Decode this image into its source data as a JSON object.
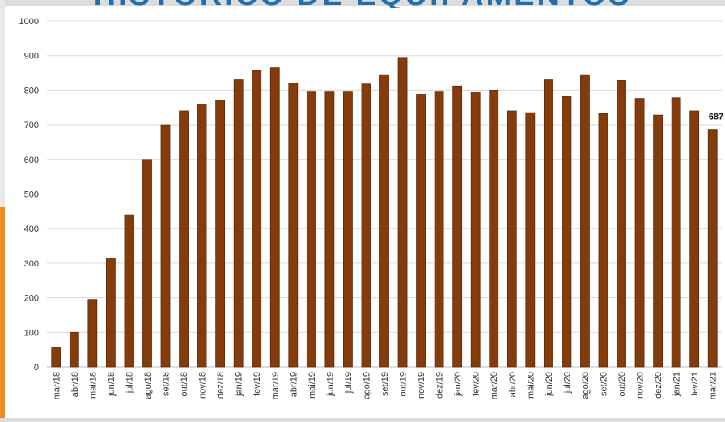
{
  "title": "HISTÓRICO DE EQUIPAMENTOS",
  "colors": {
    "bar": "#843c0c",
    "bar_stroke": "#5b2a09",
    "grid": "#d9d9d9",
    "accent_left": "#f08a24",
    "title": "#1f6fb4"
  },
  "chart_data": {
    "type": "bar",
    "categories": [
      "mar/18",
      "abr/18",
      "mai/18",
      "jun/18",
      "jul/18",
      "ago/18",
      "set/18",
      "out/18",
      "nov/18",
      "dez/18",
      "jan/19",
      "fev/19",
      "mar/19",
      "abr/19",
      "mai/19",
      "jun/19",
      "jul/19",
      "ago/19",
      "set/19",
      "out/19",
      "nov/19",
      "dez/19",
      "jan/20",
      "fev/20",
      "mar/20",
      "abr/20",
      "mai/20",
      "jun/20",
      "jul/20",
      "ago/20",
      "set/20",
      "out/20",
      "nov/20",
      "dez/20",
      "jan/21",
      "fev/21",
      "mar/21"
    ],
    "values": [
      55,
      100,
      195,
      315,
      440,
      600,
      700,
      740,
      760,
      772,
      830,
      857,
      865,
      820,
      797,
      797,
      797,
      818,
      845,
      895,
      788,
      797,
      812,
      795,
      800,
      740,
      735,
      830,
      782,
      845,
      732,
      828,
      776,
      728,
      778,
      740,
      687
    ],
    "data_labels": [
      {
        "category": "mar/21",
        "value": "687"
      }
    ],
    "ylim": [
      0,
      1000
    ],
    "yticks": [
      0,
      100,
      200,
      300,
      400,
      500,
      600,
      700,
      800,
      900,
      1000
    ],
    "grid": true,
    "legend": "none"
  }
}
